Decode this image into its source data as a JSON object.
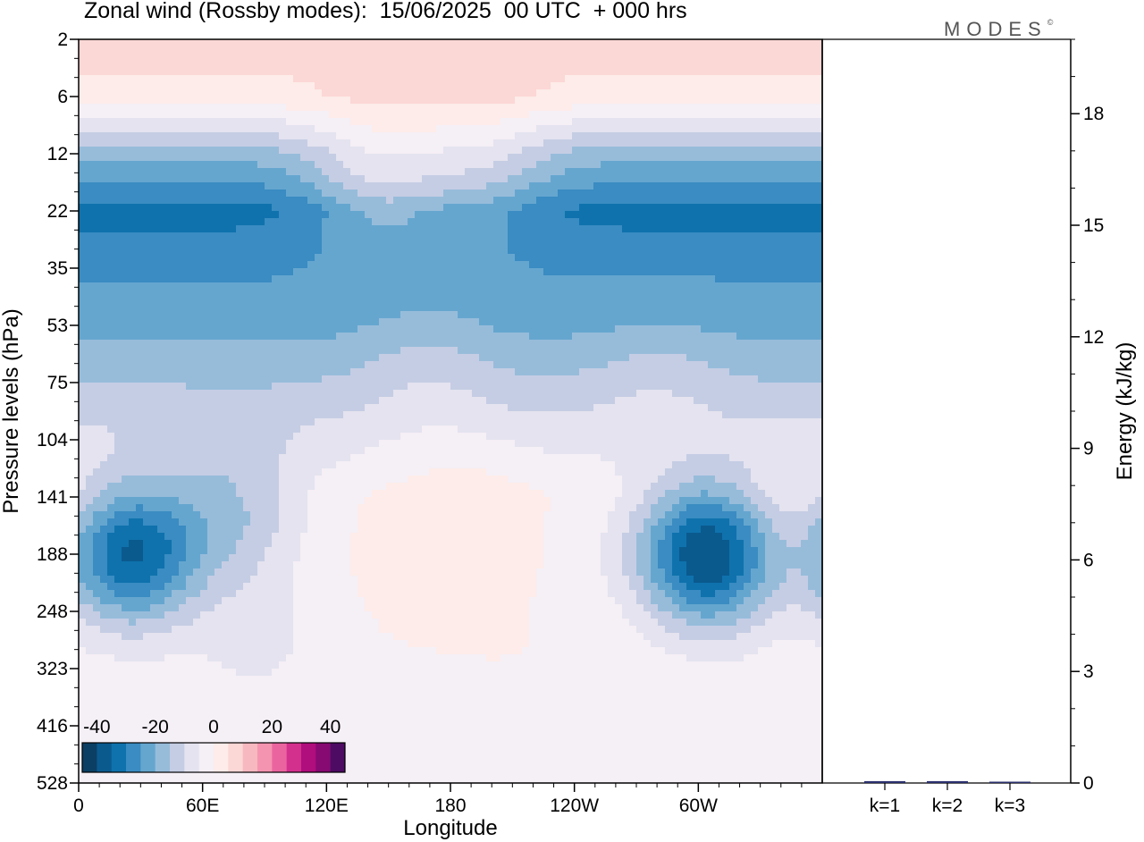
{
  "title": "Zonal wind (Rossby modes):  15/06/2025  00 UTC  + 000 hrs",
  "brand": "MODES",
  "brand_mark": "©",
  "colors": {
    "negative": [
      "#0b3f63",
      "#0a5a8e",
      "#0f72ad",
      "#3a8cc2",
      "#65a6cf",
      "#97bcda",
      "#c5cde4",
      "#e4e3ef"
    ],
    "neutral": [
      "#f5eff6",
      "#fdece9"
    ],
    "positive": [
      "#fbd7d6",
      "#f8b8c0",
      "#f494b0",
      "#ea65a0",
      "#d3308e",
      "#b00d7d",
      "#870a72",
      "#4d0b63"
    ]
  },
  "chart_data": [
    {
      "type": "heatmap",
      "title": "Zonal wind (Rossby modes):  15/06/2025  00 UTC  + 000 hrs",
      "xlabel": "Longitude",
      "ylabel": "Pressure levels (hPa)",
      "x_ticks": [
        "0",
        "60E",
        "120E",
        "180",
        "120W",
        "60W"
      ],
      "x_tick_degrees": [
        0,
        60,
        120,
        180,
        240,
        300
      ],
      "x_range_degrees": [
        0,
        360
      ],
      "y_ticks": [
        2,
        6,
        12,
        22,
        35,
        53,
        75,
        104,
        141,
        188,
        248,
        323,
        416,
        528
      ],
      "y_order": "top-to-bottom",
      "colorbar_ticks": [
        "-40",
        "-20",
        "0",
        "20",
        "40"
      ],
      "colorbar_range": [
        -45,
        45
      ],
      "colorbar_step": 5,
      "level_profile_ms": [
        8,
        3,
        -18,
        -32,
        -26,
        -22,
        -15,
        -7,
        0,
        1,
        0.5,
        0,
        0,
        0,
        0
      ],
      "features": [
        {
          "lon": 145,
          "level": 2.5,
          "value": 14
        },
        {
          "lon": 195,
          "level": 2.3,
          "value": 10
        },
        {
          "lon": 305,
          "level": 9,
          "value": -42
        },
        {
          "lon": 25,
          "level": 9,
          "value": -36
        },
        {
          "lon": 290,
          "level": 17,
          "value": -34
        },
        {
          "lon": 80,
          "level": 8.5,
          "value": -4
        },
        {
          "lon": 75,
          "level": 8.2,
          "value": -10
        },
        {
          "lon": 88,
          "level": 10.5,
          "value": -6
        },
        {
          "lon": 170,
          "level": 5.8,
          "value": 5
        },
        {
          "lon": 187,
          "level": 8.2,
          "value": 4
        },
        {
          "lon": 280,
          "level": 6,
          "value": 4
        },
        {
          "lon": 340,
          "level": 8.5,
          "value": 4
        },
        {
          "lon": 35,
          "level": 12.8,
          "value": -4
        },
        {
          "lon": 340,
          "level": 12.2,
          "value": -3
        },
        {
          "lon": 242,
          "level": 9,
          "value": -2
        },
        {
          "lon": 160,
          "level": 12.5,
          "value": -2
        }
      ]
    },
    {
      "type": "bar",
      "ylabel": "Energy (kJ/kg)",
      "categories": [
        "k=1",
        "k=2",
        "k=3"
      ],
      "values": [
        0.05,
        0.05,
        0.02
      ],
      "yticks": [
        0,
        3,
        6,
        9,
        12,
        15,
        18
      ],
      "ylim": [
        0,
        20
      ]
    }
  ]
}
